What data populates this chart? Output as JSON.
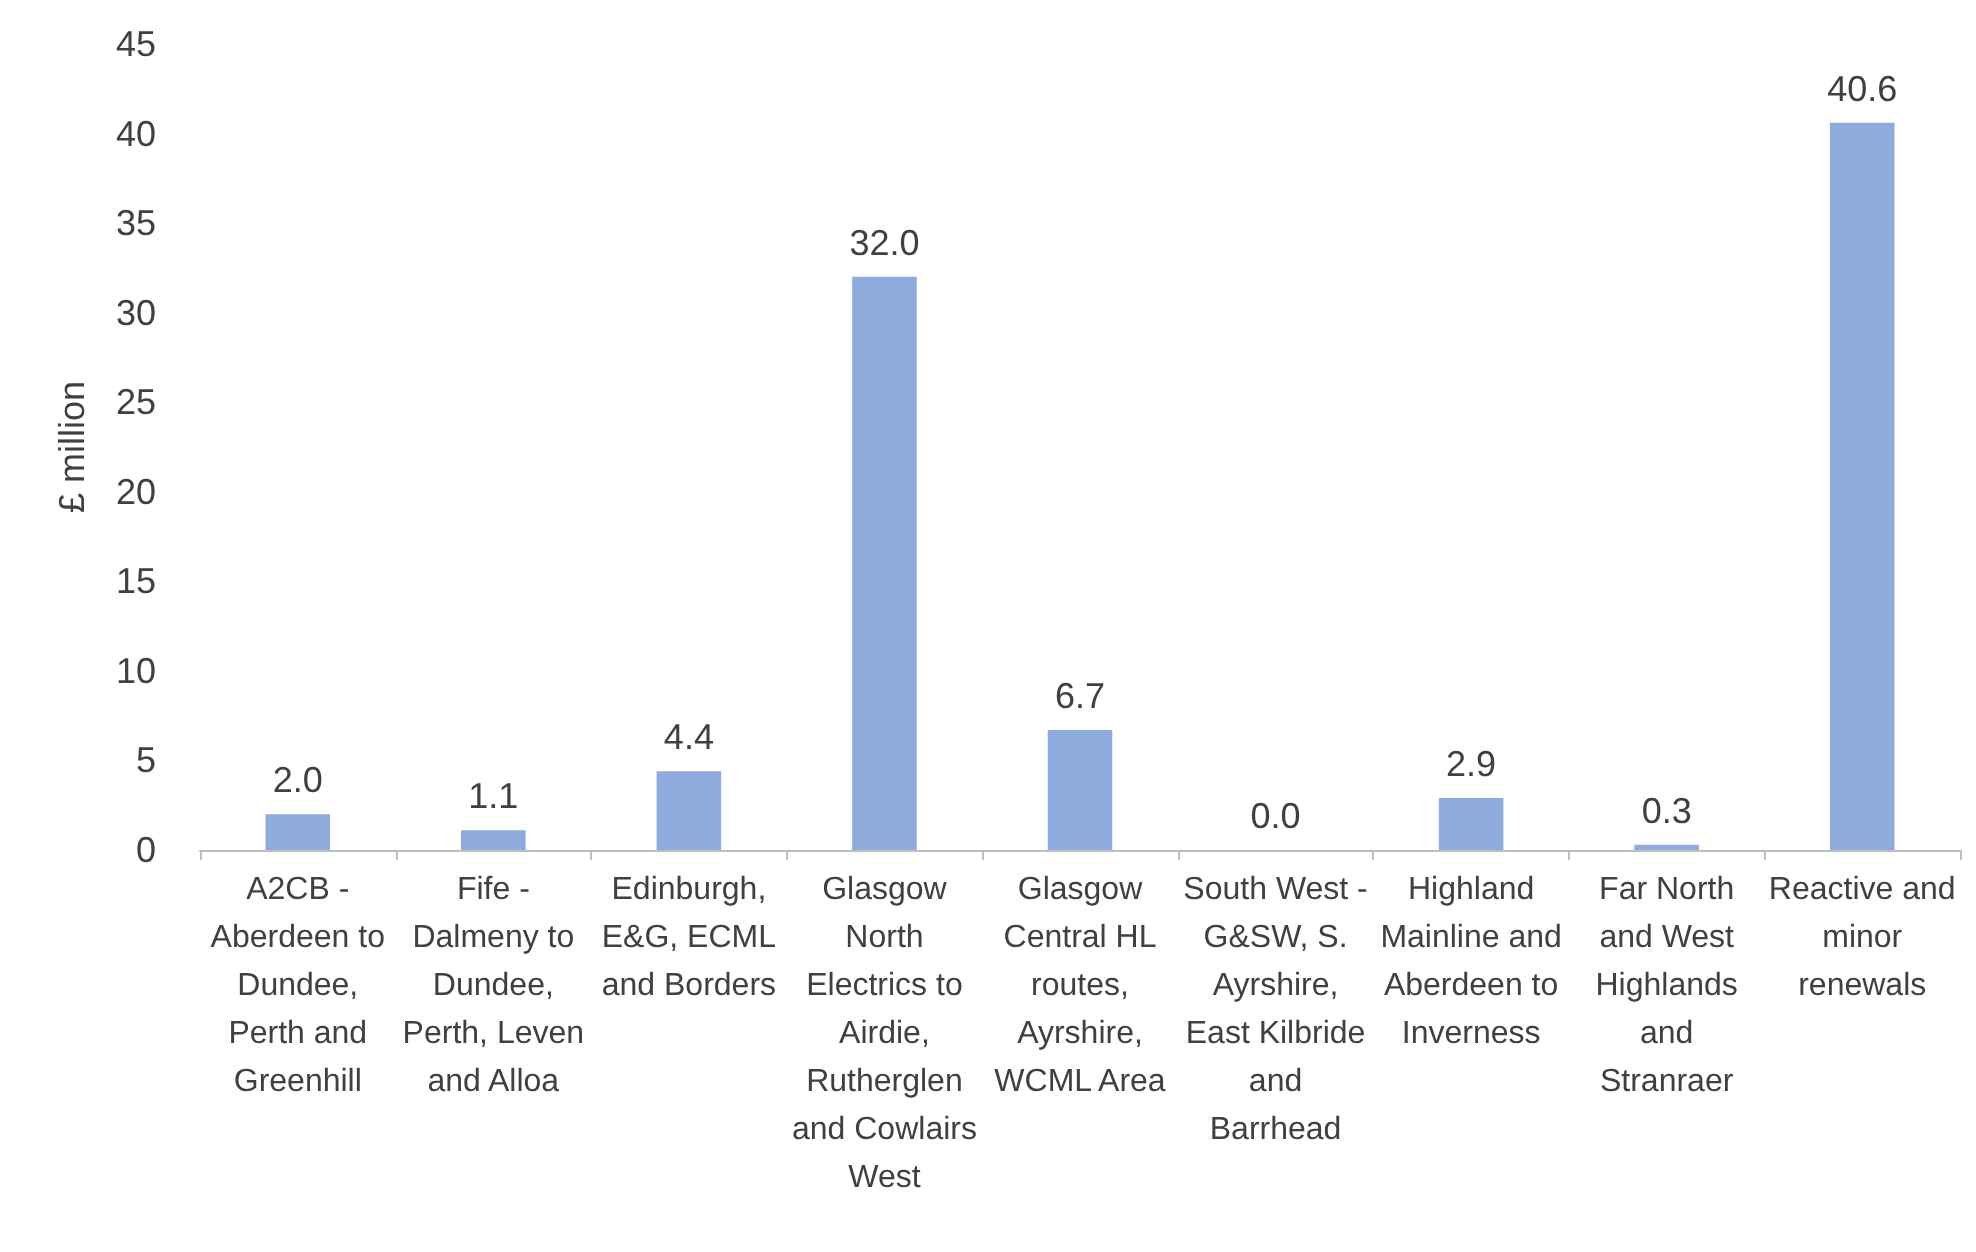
{
  "chart_data": {
    "type": "bar",
    "ylabel": "£ million",
    "categories": [
      "A2CB - Aberdeen to Dundee, Perth and Greenhill",
      "Fife - Dalmeny to Dundee, Perth, Leven and Alloa",
      "Edinburgh, E&G, ECML and Borders",
      "Glasgow North Electrics to Airdie, Rutherglen and Cowlairs West",
      "Glasgow Central HL routes, Ayrshire, WCML Area",
      "South West - G&SW, S. Ayrshire, East Kilbride and Barrhead",
      "Highland Mainline and Aberdeen to Inverness",
      "Far North and West Highlands and Stranraer",
      "Reactive and minor renewals"
    ],
    "values": [
      2.0,
      1.1,
      4.4,
      32.0,
      6.7,
      0.0,
      2.9,
      0.3,
      40.6
    ],
    "value_labels": [
      "2.0",
      "1.1",
      "4.4",
      "32.0",
      "6.7",
      "0.0",
      "2.9",
      "0.3",
      "40.6"
    ],
    "color": "#8faadc",
    "ylim": [
      0,
      45
    ],
    "yticks": [
      0,
      5,
      10,
      15,
      20,
      25,
      30,
      35,
      40,
      45
    ],
    "grid": false
  }
}
